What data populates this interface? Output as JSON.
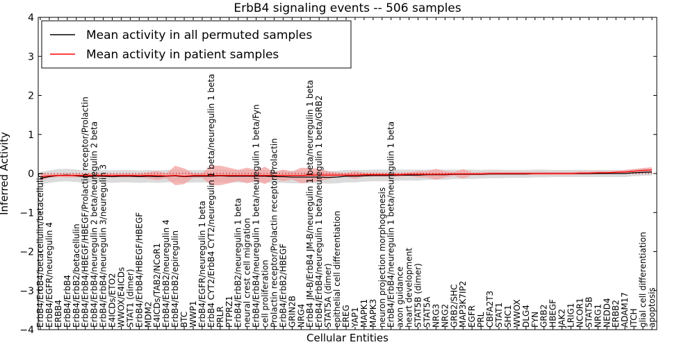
{
  "chart_data": {
    "type": "line",
    "title": "ErbB4 signaling events -- 506 samples",
    "xlabel": "Cellular Entities",
    "ylabel": "Inferred Activity",
    "ylim": [
      -4,
      4
    ],
    "yticks": [
      -4,
      -3,
      -2,
      -1,
      0,
      1,
      2,
      3,
      4
    ],
    "legend_position": "top-left",
    "categories": [
      "ErbB4/ErbB4/betacellulin/betacellulin",
      "ErbB4/EGFR/neuregulin 4",
      "ERBB4",
      "ErbB4/ErbB4",
      "ErbB4/ErbB2/betacellulin",
      "ErbB4/ErbB4/HBEGF/HBEGF/Prolactin receptor/Prolactin",
      "ErbB4/ErbB4/neuregulin 2 beta/neuregulin 2 beta",
      "ErbB4/ErbB4/neuregulin 3/neuregulin 3",
      "E4ICDs/ETO2",
      "WWOX/E4ICDs",
      "STAT1 (dimer)",
      "ErbB4/ErbB4/HBEGF/HBEGF",
      "MDM2",
      "E4ICDs/TAB2/NCoR1",
      "ErbB4/ErbB2/neuregulin 4",
      "ErbB4/ErbB2/epiregulin",
      "BTC",
      "WWP1",
      "ErbB4/EGFR/neuregulin 1 beta",
      "ErbB4 CYT2/ErbB4 CYT2/neuregulin 1 beta/neuregulin 1 beta",
      "PRLR",
      "PTPRZ1",
      "ErbB4/ErbB2/neuregulin 1 beta",
      "neural crest cell migration",
      "ErbB4/ErbB4/neuregulin 1 beta/neuregulin 1 beta/Fyn",
      "cell proliferation",
      "Prolactin receptor/Prolactin receptor/Prolactin",
      "ErbB4/ErbB2/HBEGF",
      "GRIN2B",
      "NRG4",
      "ErbB4 JM-B/ErbB4 JM-B/neuregulin 1 beta/neuregulin 1 beta",
      "ErbB4/ErbB4/neuregulin 1 beta/neuregulin 1 beta/GRB2",
      "STAT5A (dimer)",
      "epithelial cell differentiation",
      "EREG",
      "YAP1",
      "MAPK1",
      "MAPK3",
      "neuron projection morphogenesis",
      "ErbB4/ErbB4/neuregulin 1 beta/neuregulin 1 beta",
      "axon guidance",
      "heart development",
      "STAT5B (dimer)",
      "STAT5A",
      "NRG3",
      "NRG2",
      "GRB2/SHC",
      "MAP3K7IP2",
      "EGFR",
      "PRL",
      "CBFA2T3",
      "STAT1",
      "SHC1",
      "WWOX",
      "DLG4",
      "FYN",
      "GRB2",
      "HBEGF",
      "JAK2",
      "LRIG1",
      "NCOR1",
      "STAT5B",
      "NRG1",
      "NEDD4",
      "ERBB2",
      "ADAM17",
      "ITCH",
      "glial cell differentiation",
      "apoptosis"
    ],
    "series": [
      {
        "name": "Mean activity in all permuted samples",
        "color": "#000000",
        "band_color": "#cccccc",
        "values": [
          -0.12,
          -0.08,
          -0.05,
          -0.04,
          -0.06,
          -0.08,
          -0.07,
          -0.07,
          -0.08,
          -0.07,
          -0.07,
          -0.08,
          -0.07,
          -0.08,
          -0.07,
          -0.06,
          -0.08,
          -0.07,
          -0.07,
          -0.07,
          -0.06,
          -0.07,
          -0.07,
          -0.07,
          -0.07,
          -0.07,
          -0.08,
          -0.08,
          -0.09,
          -0.09,
          -0.09,
          -0.09,
          -0.1,
          -0.09,
          -0.07,
          -0.07,
          -0.06,
          -0.05,
          -0.05,
          -0.05,
          -0.04,
          -0.04,
          -0.04,
          -0.03,
          -0.03,
          -0.03,
          -0.02,
          -0.02,
          -0.02,
          -0.02,
          -0.01,
          -0.01,
          -0.01,
          -0.01,
          -0.01,
          0.0,
          0.0,
          0.0,
          0.0,
          0.0,
          0.0,
          0.0,
          0.0,
          0.0,
          0.0,
          0.0,
          0.02,
          0.03,
          0.04
        ],
        "band_half_width": [
          0.16,
          0.16,
          0.16,
          0.16,
          0.16,
          0.16,
          0.16,
          0.16,
          0.16,
          0.16,
          0.16,
          0.16,
          0.16,
          0.16,
          0.16,
          0.16,
          0.16,
          0.16,
          0.16,
          0.16,
          0.16,
          0.16,
          0.16,
          0.16,
          0.16,
          0.16,
          0.16,
          0.16,
          0.16,
          0.16,
          0.16,
          0.16,
          0.16,
          0.16,
          0.16,
          0.16,
          0.15,
          0.15,
          0.15,
          0.15,
          0.14,
          0.14,
          0.14,
          0.13,
          0.13,
          0.13,
          0.12,
          0.12,
          0.12,
          0.11,
          0.11,
          0.11,
          0.1,
          0.1,
          0.1,
          0.1,
          0.1,
          0.09,
          0.09,
          0.09,
          0.09,
          0.09,
          0.09,
          0.09,
          0.09,
          0.09,
          0.09,
          0.09,
          0.09
        ]
      },
      {
        "name": "Mean activity in patient samples",
        "color": "#ff0000",
        "band_color": "#f4a0a0",
        "values": [
          -0.08,
          -0.06,
          -0.05,
          -0.05,
          -0.05,
          -0.05,
          -0.05,
          -0.05,
          -0.05,
          -0.05,
          -0.05,
          -0.05,
          -0.05,
          -0.05,
          -0.06,
          -0.05,
          -0.07,
          -0.05,
          -0.05,
          -0.05,
          -0.05,
          -0.05,
          -0.05,
          -0.05,
          -0.05,
          -0.05,
          -0.05,
          -0.05,
          -0.05,
          -0.05,
          -0.04,
          -0.04,
          -0.04,
          -0.04,
          -0.04,
          -0.04,
          -0.03,
          -0.03,
          -0.03,
          -0.03,
          -0.03,
          -0.02,
          -0.02,
          -0.02,
          -0.02,
          -0.02,
          -0.01,
          -0.01,
          -0.01,
          -0.01,
          0.0,
          0.0,
          0.0,
          0.0,
          0.0,
          0.0,
          0.0,
          0.0,
          0.0,
          0.0,
          0.01,
          0.01,
          0.02,
          0.02,
          0.03,
          0.04,
          0.06,
          0.08,
          0.09
        ],
        "band_half_width": [
          0.1,
          0.05,
          0.04,
          0.05,
          0.05,
          0.05,
          0.05,
          0.05,
          0.05,
          0.05,
          0.05,
          0.05,
          0.08,
          0.12,
          0.06,
          0.25,
          0.2,
          0.06,
          0.06,
          0.25,
          0.25,
          0.2,
          0.14,
          0.2,
          0.14,
          0.22,
          0.08,
          0.15,
          0.1,
          0.2,
          0.18,
          0.16,
          0.1,
          0.06,
          0.05,
          0.1,
          0.05,
          0.05,
          0.05,
          0.05,
          0.05,
          0.05,
          0.08,
          0.08,
          0.14,
          0.08,
          0.05,
          0.12,
          0.04,
          0.04,
          0.04,
          0.04,
          0.04,
          0.04,
          0.04,
          0.04,
          0.04,
          0.04,
          0.04,
          0.04,
          0.04,
          0.04,
          0.04,
          0.04,
          0.04,
          0.05,
          0.05,
          0.06,
          0.07
        ]
      }
    ],
    "reference_line": {
      "y": 0,
      "style": "dotted",
      "color": "#cc0000"
    }
  }
}
